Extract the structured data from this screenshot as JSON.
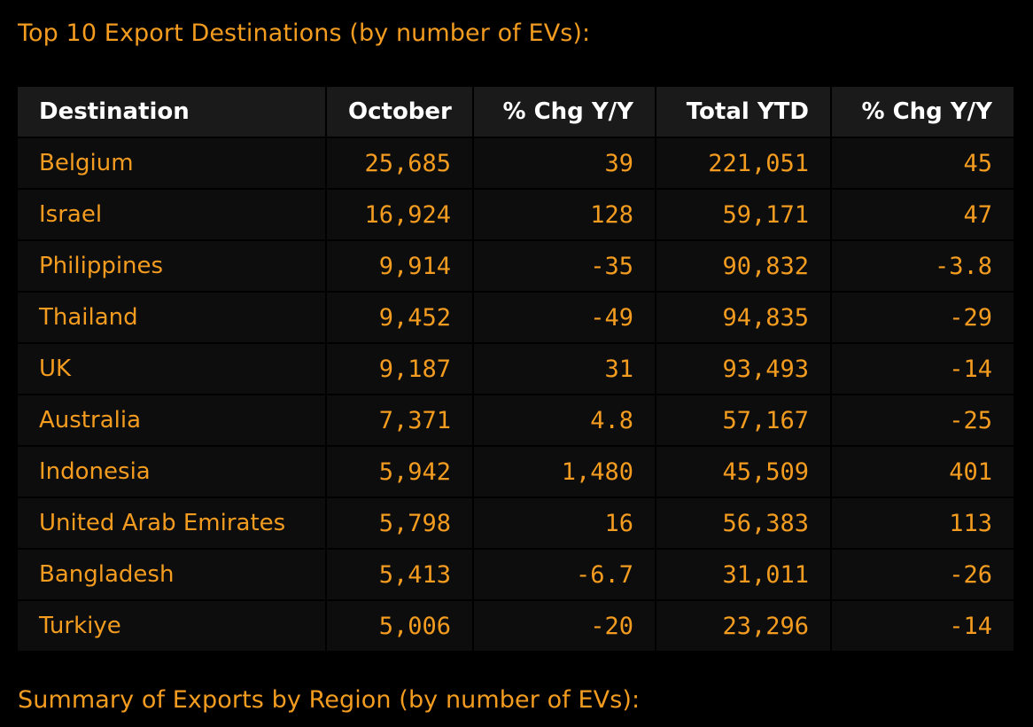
{
  "headings": {
    "top": "Top 10 Export Destinations (by number of EVs):",
    "bottom": "Summary of Exports by Region (by number of EVs):"
  },
  "table": {
    "columns": [
      "Destination",
      "October",
      "% Chg Y/Y",
      "Total YTD",
      "% Chg Y/Y"
    ],
    "rows": [
      [
        "Belgium",
        "25,685",
        "39",
        "221,051",
        "45"
      ],
      [
        "Israel",
        "16,924",
        "128",
        "59,171",
        "47"
      ],
      [
        "Philippines",
        "9,914",
        "-35",
        "90,832",
        "-3.8"
      ],
      [
        "Thailand",
        "9,452",
        "-49",
        "94,835",
        "-29"
      ],
      [
        "UK",
        "9,187",
        "31",
        "93,493",
        "-14"
      ],
      [
        "Australia",
        "7,371",
        "4.8",
        "57,167",
        "-25"
      ],
      [
        "Indonesia",
        "5,942",
        "1,480",
        "45,509",
        "401"
      ],
      [
        "United Arab Emirates",
        "5,798",
        "16",
        "56,383",
        "113"
      ],
      [
        "Bangladesh",
        "5,413",
        "-6.7",
        "31,011",
        "-26"
      ],
      [
        "Turkiye",
        "5,006",
        "-20",
        "23,296",
        "-14"
      ]
    ]
  },
  "colors": {
    "background": "#000000",
    "accent": "#f39c1f",
    "header_background": "#1a1a1a",
    "row_background": "#0d0d0d",
    "header_text": "#ffffff"
  }
}
